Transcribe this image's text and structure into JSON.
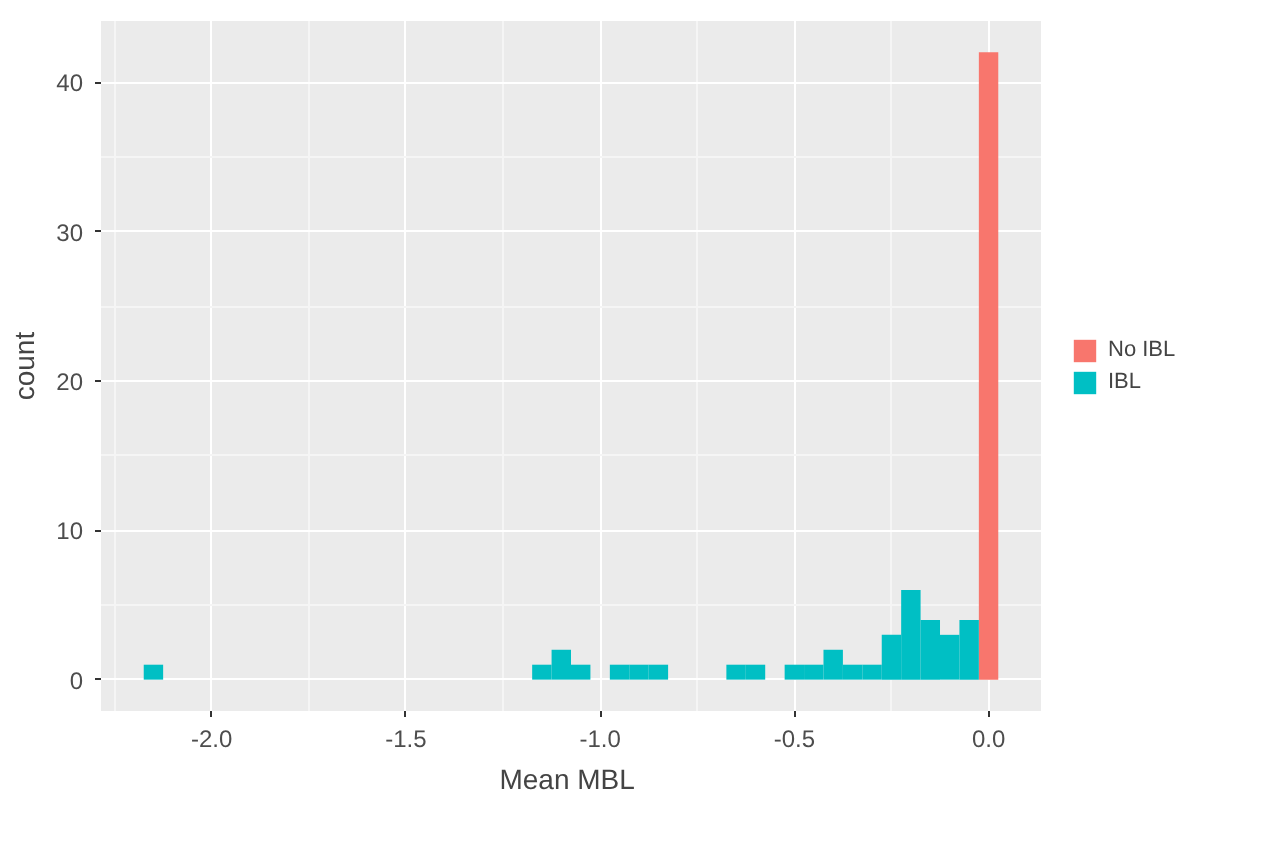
{
  "chart_data": {
    "type": "histogram",
    "xlabel": "Mean  MBL",
    "ylabel": "count",
    "bins": [
      -2.175,
      -2.125,
      -2.075,
      -2.025,
      -1.975,
      -1.925,
      -1.875,
      -1.825,
      -1.775,
      -1.725,
      -1.675,
      -1.625,
      -1.575,
      -1.525,
      -1.475,
      -1.425,
      -1.375,
      -1.325,
      -1.275,
      -1.225,
      -1.175,
      -1.125,
      -1.075,
      -1.025,
      -0.975,
      -0.925,
      -0.875,
      -0.825,
      -0.775,
      -0.725,
      -0.675,
      -0.625,
      -0.575,
      -0.525,
      -0.475,
      -0.425,
      -0.375,
      -0.325,
      -0.275,
      -0.225,
      -0.175,
      -0.125,
      -0.075,
      -0.025,
      0.025
    ],
    "series": [
      {
        "name": "No IBL",
        "color": "#f8766d",
        "values": [
          0,
          0,
          0,
          0,
          0,
          0,
          0,
          0,
          0,
          0,
          0,
          0,
          0,
          0,
          0,
          0,
          0,
          0,
          0,
          0,
          0,
          0,
          0,
          0,
          0,
          0,
          0,
          0,
          0,
          0,
          0,
          0,
          0,
          0,
          0,
          0,
          0,
          0,
          0,
          0,
          0,
          0,
          0,
          42
        ]
      },
      {
        "name": "IBL",
        "color": "#00bfc4",
        "values": [
          1,
          0,
          0,
          0,
          0,
          0,
          0,
          0,
          0,
          0,
          0,
          0,
          0,
          0,
          0,
          0,
          0,
          0,
          0,
          0,
          1,
          2,
          1,
          0,
          1,
          1,
          1,
          0,
          0,
          0,
          1,
          1,
          0,
          1,
          1,
          2,
          1,
          1,
          3,
          6,
          4,
          3,
          4,
          0
        ]
      }
    ],
    "xlim": [
      -2.285,
      0.135
    ],
    "xticks": [
      {
        "value": -2.0,
        "label": "-2.0"
      },
      {
        "value": -1.5,
        "label": "-1.5"
      },
      {
        "value": -1.0,
        "label": "-1.0"
      },
      {
        "value": -0.5,
        "label": "-0.5"
      },
      {
        "value": 0.0,
        "label": "0.0"
      }
    ],
    "ylim": [
      -2.1,
      44.1
    ],
    "yticks": [
      0,
      10,
      20,
      30,
      40
    ],
    "grid": true,
    "legend": "right"
  }
}
